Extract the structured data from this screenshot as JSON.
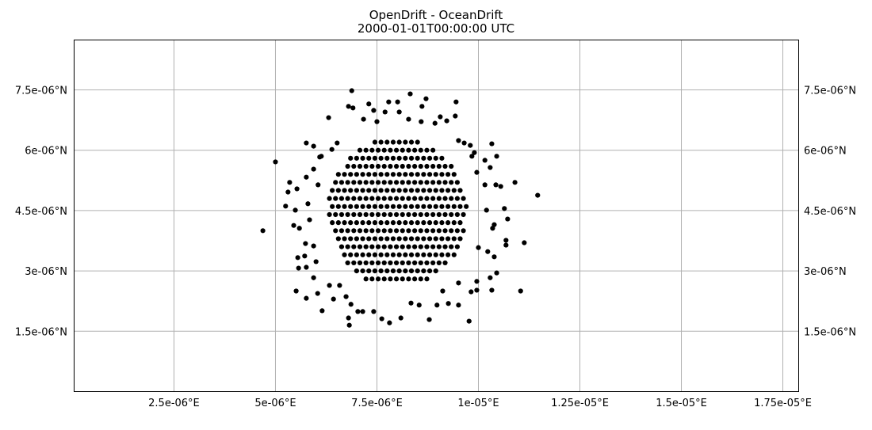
{
  "chart_data": {
    "type": "scatter",
    "title": "OpenDrift - OceanDrift",
    "subtitle": "2000-01-01T00:00:00 UTC",
    "xlim": [
      4e-08,
      1.789e-05
    ],
    "ylim": [
      0,
      8.74e-06
    ],
    "grid": true,
    "marker_color": "#000000",
    "grid_color": "#b0b0b0",
    "x_ticks": [
      {
        "value": 2.5e-06,
        "label": "2.5e-06°E"
      },
      {
        "value": 5e-06,
        "label": "5e-06°E"
      },
      {
        "value": 7.5e-06,
        "label": "7.5e-06°E"
      },
      {
        "value": 1e-05,
        "label": "1e-05°E"
      },
      {
        "value": 1.25e-05,
        "label": "1.25e-05°E"
      },
      {
        "value": 1.5e-05,
        "label": "1.5e-05°E"
      },
      {
        "value": 1.75e-05,
        "label": "1.75e-05°E"
      }
    ],
    "y_ticks": [
      {
        "value": 7.5e-06,
        "label": "7.5e-06°N"
      },
      {
        "value": 6e-06,
        "label": "6e-06°N"
      },
      {
        "value": 4.5e-06,
        "label": "4.5e-06°N"
      },
      {
        "value": 3e-06,
        "label": "3e-06°N"
      },
      {
        "value": 1.5e-06,
        "label": "1.5e-06°N"
      }
    ],
    "core_rows": [
      {
        "lat": 6.2e-06,
        "lon": [
          7.45e-06,
          7.6e-06,
          7.75e-06,
          7.9e-06,
          8.05e-06,
          8.2e-06,
          8.35e-06,
          8.5e-06
        ]
      },
      {
        "lat": 6e-06,
        "lon": [
          7.08e-06,
          7.23e-06,
          7.38e-06,
          7.53e-06,
          7.68e-06,
          7.83e-06,
          7.98e-06,
          8.13e-06,
          8.28e-06,
          8.43e-06,
          8.58e-06,
          8.73e-06,
          8.88e-06
        ]
      },
      {
        "lat": 5.8e-06,
        "lon": [
          6.85e-06,
          7e-06,
          7.15e-06,
          7.3e-06,
          7.45e-06,
          7.6e-06,
          7.75e-06,
          7.9e-06,
          8.05e-06,
          8.2e-06,
          8.35e-06,
          8.5e-06,
          8.65e-06,
          8.8e-06,
          8.95e-06,
          9.1e-06
        ]
      },
      {
        "lat": 5.6e-06,
        "lon": [
          6.78e-06,
          6.93e-06,
          7.08e-06,
          7.23e-06,
          7.38e-06,
          7.53e-06,
          7.68e-06,
          7.83e-06,
          7.98e-06,
          8.13e-06,
          8.28e-06,
          8.43e-06,
          8.58e-06,
          8.73e-06,
          8.88e-06,
          9.03e-06,
          9.18e-06,
          9.33e-06
        ]
      },
      {
        "lat": 5.4e-06,
        "lon": [
          6.55e-06,
          6.7e-06,
          6.85e-06,
          7e-06,
          7.15e-06,
          7.3e-06,
          7.45e-06,
          7.6e-06,
          7.75e-06,
          7.9e-06,
          8.05e-06,
          8.2e-06,
          8.35e-06,
          8.5e-06,
          8.65e-06,
          8.8e-06,
          8.95e-06,
          9.1e-06,
          9.25e-06,
          9.4e-06
        ]
      },
      {
        "lat": 5.2e-06,
        "lon": [
          6.48e-06,
          6.63e-06,
          6.78e-06,
          6.93e-06,
          7.08e-06,
          7.23e-06,
          7.38e-06,
          7.53e-06,
          7.68e-06,
          7.83e-06,
          7.98e-06,
          8.13e-06,
          8.28e-06,
          8.43e-06,
          8.58e-06,
          8.73e-06,
          8.88e-06,
          9.03e-06,
          9.18e-06,
          9.33e-06,
          9.48e-06
        ]
      },
      {
        "lat": 5e-06,
        "lon": [
          6.4e-06,
          6.55e-06,
          6.7e-06,
          6.85e-06,
          7e-06,
          7.15e-06,
          7.3e-06,
          7.45e-06,
          7.6e-06,
          7.75e-06,
          7.9e-06,
          8.05e-06,
          8.2e-06,
          8.35e-06,
          8.5e-06,
          8.65e-06,
          8.8e-06,
          8.95e-06,
          9.1e-06,
          9.25e-06,
          9.4e-06,
          9.55e-06
        ]
      },
      {
        "lat": 4.8e-06,
        "lon": [
          6.33e-06,
          6.48e-06,
          6.63e-06,
          6.78e-06,
          6.93e-06,
          7.08e-06,
          7.23e-06,
          7.38e-06,
          7.53e-06,
          7.68e-06,
          7.83e-06,
          7.98e-06,
          8.13e-06,
          8.28e-06,
          8.43e-06,
          8.58e-06,
          8.73e-06,
          8.88e-06,
          9.03e-06,
          9.18e-06,
          9.33e-06,
          9.48e-06,
          9.63e-06
        ]
      },
      {
        "lat": 4.6e-06,
        "lon": [
          6.4e-06,
          6.55e-06,
          6.7e-06,
          6.85e-06,
          7e-06,
          7.15e-06,
          7.3e-06,
          7.45e-06,
          7.6e-06,
          7.75e-06,
          7.9e-06,
          8.05e-06,
          8.2e-06,
          8.35e-06,
          8.5e-06,
          8.65e-06,
          8.8e-06,
          8.95e-06,
          9.1e-06,
          9.25e-06,
          9.4e-06,
          9.55e-06,
          9.7e-06
        ]
      },
      {
        "lat": 4.4e-06,
        "lon": [
          6.33e-06,
          6.48e-06,
          6.63e-06,
          6.78e-06,
          6.93e-06,
          7.08e-06,
          7.23e-06,
          7.38e-06,
          7.53e-06,
          7.68e-06,
          7.83e-06,
          7.98e-06,
          8.13e-06,
          8.28e-06,
          8.43e-06,
          8.58e-06,
          8.73e-06,
          8.88e-06,
          9.03e-06,
          9.18e-06,
          9.33e-06,
          9.48e-06,
          9.63e-06
        ]
      },
      {
        "lat": 4.2e-06,
        "lon": [
          6.4e-06,
          6.55e-06,
          6.7e-06,
          6.85e-06,
          7e-06,
          7.15e-06,
          7.3e-06,
          7.45e-06,
          7.6e-06,
          7.75e-06,
          7.9e-06,
          8.05e-06,
          8.2e-06,
          8.35e-06,
          8.5e-06,
          8.65e-06,
          8.8e-06,
          8.95e-06,
          9.1e-06,
          9.25e-06,
          9.4e-06,
          9.55e-06
        ]
      },
      {
        "lat": 4e-06,
        "lon": [
          6.48e-06,
          6.63e-06,
          6.78e-06,
          6.93e-06,
          7.08e-06,
          7.23e-06,
          7.38e-06,
          7.53e-06,
          7.68e-06,
          7.83e-06,
          7.98e-06,
          8.13e-06,
          8.28e-06,
          8.43e-06,
          8.58e-06,
          8.73e-06,
          8.88e-06,
          9.03e-06,
          9.18e-06,
          9.33e-06,
          9.48e-06,
          9.63e-06
        ]
      },
      {
        "lat": 3.8e-06,
        "lon": [
          6.55e-06,
          6.7e-06,
          6.85e-06,
          7e-06,
          7.15e-06,
          7.3e-06,
          7.45e-06,
          7.6e-06,
          7.75e-06,
          7.9e-06,
          8.05e-06,
          8.2e-06,
          8.35e-06,
          8.5e-06,
          8.65e-06,
          8.8e-06,
          8.95e-06,
          9.1e-06,
          9.25e-06,
          9.4e-06,
          9.55e-06
        ]
      },
      {
        "lat": 3.6e-06,
        "lon": [
          6.63e-06,
          6.78e-06,
          6.93e-06,
          7.08e-06,
          7.23e-06,
          7.38e-06,
          7.53e-06,
          7.68e-06,
          7.83e-06,
          7.98e-06,
          8.13e-06,
          8.28e-06,
          8.43e-06,
          8.58e-06,
          8.73e-06,
          8.88e-06,
          9.03e-06,
          9.18e-06,
          9.33e-06,
          9.48e-06
        ]
      },
      {
        "lat": 3.4e-06,
        "lon": [
          6.7e-06,
          6.85e-06,
          7e-06,
          7.15e-06,
          7.3e-06,
          7.45e-06,
          7.6e-06,
          7.75e-06,
          7.9e-06,
          8.05e-06,
          8.2e-06,
          8.35e-06,
          8.5e-06,
          8.65e-06,
          8.8e-06,
          8.95e-06,
          9.1e-06,
          9.25e-06,
          9.4e-06
        ]
      },
      {
        "lat": 3.2e-06,
        "lon": [
          6.78e-06,
          6.93e-06,
          7.08e-06,
          7.23e-06,
          7.38e-06,
          7.53e-06,
          7.68e-06,
          7.83e-06,
          7.98e-06,
          8.13e-06,
          8.28e-06,
          8.43e-06,
          8.58e-06,
          8.73e-06,
          8.88e-06,
          9.03e-06,
          9.18e-06
        ]
      },
      {
        "lat": 3e-06,
        "lon": [
          7e-06,
          7.15e-06,
          7.3e-06,
          7.45e-06,
          7.6e-06,
          7.75e-06,
          7.9e-06,
          8.05e-06,
          8.2e-06,
          8.35e-06,
          8.5e-06,
          8.65e-06,
          8.8e-06,
          8.95e-06
        ]
      },
      {
        "lat": 2.8e-06,
        "lon": [
          7.23e-06,
          7.38e-06,
          7.53e-06,
          7.68e-06,
          7.83e-06,
          7.98e-06,
          8.13e-06,
          8.28e-06,
          8.43e-06,
          8.58e-06,
          8.73e-06
        ]
      }
    ],
    "points": [
      [
        4.69e-06,
        4e-06
      ],
      [
        5e-06,
        5.71e-06
      ],
      [
        1.146e-05,
        4.88e-06
      ],
      [
        1.104e-05,
        2.5e-06
      ],
      [
        6.88e-06,
        7.48e-06
      ],
      [
        8.32e-06,
        7.4e-06
      ],
      [
        8.71e-06,
        7.28e-06
      ],
      [
        9.45e-06,
        7.2e-06
      ],
      [
        9.43e-06,
        6.85e-06
      ],
      [
        6.31e-06,
        6.81e-06
      ],
      [
        5.76e-06,
        6.18e-06
      ],
      [
        5.94e-06,
        6.1e-06
      ],
      [
        1.045e-05,
        5.85e-06
      ],
      [
        1.016e-05,
        5.75e-06
      ],
      [
        1.029e-05,
        5.57e-06
      ],
      [
        1.09e-05,
        5.2e-06
      ],
      [
        1.064e-05,
        4.55e-06
      ],
      [
        1.072e-05,
        4.29e-06
      ],
      [
        1.068e-05,
        3.76e-06
      ],
      [
        1.068e-05,
        3.64e-06
      ],
      [
        1.113e-05,
        3.7e-06
      ],
      [
        1.045e-05,
        2.95e-06
      ],
      [
        1.029e-05,
        2.83e-06
      ],
      [
        1.033e-05,
        2.52e-06
      ],
      [
        9.96e-06,
        2.52e-06
      ],
      [
        9.82e-06,
        2.48e-06
      ],
      [
        9.77e-06,
        1.75e-06
      ],
      [
        9.51e-06,
        2.15e-06
      ],
      [
        9.26e-06,
        2.19e-06
      ],
      [
        8.79e-06,
        1.79e-06
      ],
      [
        8.09e-06,
        1.83e-06
      ],
      [
        7.81e-06,
        1.71e-06
      ],
      [
        7.62e-06,
        1.81e-06
      ],
      [
        7.15e-06,
        1.99e-06
      ],
      [
        6.82e-06,
        1.65e-06
      ],
      [
        6.8e-06,
        1.83e-06
      ],
      [
        6.15e-06,
        2.01e-06
      ],
      [
        5.76e-06,
        2.32e-06
      ],
      [
        5.51e-06,
        2.5e-06
      ],
      [
        6.04e-06,
        2.44e-06
      ],
      [
        6.43e-06,
        2.3e-06
      ],
      [
        6.74e-06,
        2.36e-06
      ],
      [
        6.86e-06,
        2.17e-06
      ],
      [
        5.94e-06,
        2.83e-06
      ],
      [
        5.57e-06,
        3.07e-06
      ],
      [
        5.76e-06,
        3.09e-06
      ],
      [
        5.55e-06,
        3.33e-06
      ],
      [
        5.72e-06,
        3.37e-06
      ],
      [
        5.45e-06,
        4.13e-06
      ],
      [
        5.59e-06,
        4.06e-06
      ],
      [
        5.25e-06,
        4.61e-06
      ],
      [
        5.49e-06,
        4.51e-06
      ],
      [
        5.31e-06,
        4.96e-06
      ],
      [
        5.35e-06,
        5.2e-06
      ],
      [
        5.53e-06,
        5.04e-06
      ],
      [
        5.76e-06,
        5.33e-06
      ],
      [
        5.94e-06,
        5.53e-06
      ],
      [
        6.09e-06,
        5.83e-06
      ],
      [
        7.3e-06,
        7.15e-06
      ],
      [
        7.79e-06,
        7.2e-06
      ],
      [
        8.01e-06,
        7.2e-06
      ],
      [
        6.8e-06,
        7.09e-06
      ],
      [
        6.91e-06,
        7.05e-06
      ],
      [
        8.61e-06,
        7.09e-06
      ],
      [
        7.7e-06,
        6.95e-06
      ],
      [
        7.42e-06,
        6.99e-06
      ],
      [
        8.05e-06,
        6.95e-06
      ],
      [
        9.22e-06,
        6.73e-06
      ],
      [
        9.06e-06,
        6.83e-06
      ],
      [
        1.033e-05,
        6.16e-06
      ],
      [
        9.8e-06,
        6.12e-06
      ],
      [
        9.9e-06,
        5.94e-06
      ],
      [
        9.96e-06,
        5.45e-06
      ],
      [
        1.016e-05,
        5.14e-06
      ],
      [
        1.043e-05,
        5.14e-06
      ],
      [
        1.055e-05,
        5.1e-06
      ],
      [
        1.02e-05,
        4.51e-06
      ],
      [
        1.039e-05,
        4.15e-06
      ],
      [
        1.035e-05,
        4.06e-06
      ],
      [
        1.023e-05,
        3.48e-06
      ],
      [
        1.039e-05,
        3.35e-06
      ],
      [
        1e-05,
        3.58e-06
      ],
      [
        9.96e-06,
        2.74e-06
      ],
      [
        9.51e-06,
        2.7e-06
      ],
      [
        9.12e-06,
        2.5e-06
      ],
      [
        8.98e-06,
        2.15e-06
      ],
      [
        8.54e-06,
        2.15e-06
      ],
      [
        8.34e-06,
        2.2e-06
      ],
      [
        7.42e-06,
        1.99e-06
      ],
      [
        7.03e-06,
        1.99e-06
      ],
      [
        6.58e-06,
        2.64e-06
      ],
      [
        6.33e-06,
        2.64e-06
      ],
      [
        6e-06,
        3.23e-06
      ],
      [
        5.94e-06,
        3.62e-06
      ],
      [
        5.74e-06,
        3.68e-06
      ],
      [
        5.84e-06,
        4.27e-06
      ],
      [
        5.8e-06,
        4.67e-06
      ],
      [
        6.05e-06,
        5.14e-06
      ],
      [
        6.13e-06,
        5.85e-06
      ],
      [
        6.39e-06,
        6.02e-06
      ],
      [
        6.52e-06,
        6.18e-06
      ],
      [
        7.17e-06,
        6.77e-06
      ],
      [
        7.5e-06,
        6.71e-06
      ],
      [
        8.28e-06,
        6.77e-06
      ],
      [
        8.59e-06,
        6.71e-06
      ],
      [
        8.93e-06,
        6.67e-06
      ],
      [
        9.51e-06,
        6.24e-06
      ],
      [
        9.65e-06,
        6.18e-06
      ],
      [
        9.84e-06,
        5.85e-06
      ]
    ]
  }
}
